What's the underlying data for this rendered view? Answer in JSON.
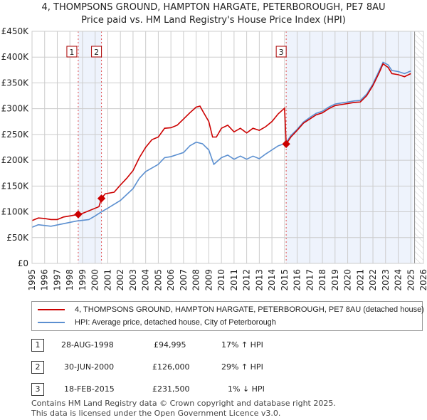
{
  "title": "4, THOMPSONS GROUND, HAMPTON HARGATE, PETERBOROUGH, PE7 8AU",
  "subtitle": "Price paid vs. HM Land Registry's House Price Index (HPI)",
  "colors": {
    "property": "#cc0000",
    "hpi": "#5b8fd0",
    "shade": "#eef3fc"
  },
  "legend": [
    {
      "label": "4, THOMPSONS GROUND, HAMPTON HARGATE, PETERBOROUGH, PE7 8AU (detached house)"
    },
    {
      "label": "HPI: Average price, detached house, City of Peterborough"
    }
  ],
  "sales": [
    {
      "num": "1",
      "date": "28-AUG-1998",
      "price": "£94,995",
      "hpi": "17% ↑ HPI"
    },
    {
      "num": "2",
      "date": "30-JUN-2000",
      "price": "£126,000",
      "hpi": "29% ↑ HPI"
    },
    {
      "num": "3",
      "date": "18-FEB-2015",
      "price": "£231,500",
      "hpi": "1% ↓ HPI"
    }
  ],
  "footer": [
    "Contains HM Land Registry data © Crown copyright and database right 2025.",
    "This data is licensed under the Open Government Licence v3.0."
  ],
  "chart_data": {
    "type": "line",
    "xlim": [
      1995,
      2026
    ],
    "ylim": [
      0,
      450000
    ],
    "yticks": [
      0,
      50000,
      100000,
      150000,
      200000,
      250000,
      300000,
      350000,
      400000,
      450000
    ],
    "ytick_labels": [
      "£0",
      "£50K",
      "£100K",
      "£150K",
      "£200K",
      "£250K",
      "£300K",
      "£350K",
      "£400K",
      "£450K"
    ],
    "xticks": [
      1995,
      1996,
      1997,
      1998,
      1999,
      2000,
      2001,
      2002,
      2003,
      2004,
      2005,
      2006,
      2007,
      2008,
      2009,
      2010,
      2011,
      2012,
      2013,
      2014,
      2015,
      2016,
      2017,
      2018,
      2019,
      2020,
      2021,
      2022,
      2023,
      2024,
      2025,
      2026
    ],
    "grid": true,
    "sale_points": [
      {
        "x": 1998.66,
        "y": 94995
      },
      {
        "x": 2000.5,
        "y": 126000
      },
      {
        "x": 2015.13,
        "y": 231500
      }
    ],
    "shaded": [
      [
        1998.66,
        2000.5
      ],
      [
        2015.13,
        2025.2
      ]
    ],
    "hatched_from": 2025.3,
    "series": [
      {
        "name": "property",
        "x": [
          1995,
          1995.5,
          1996,
          1996.5,
          1997,
          1997.5,
          1998,
          1998.66,
          1999,
          1999.5,
          2000.3,
          2000.5,
          2000.8,
          2001.5,
          2002,
          2002.5,
          2003,
          2003.5,
          2004,
          2004.5,
          2005,
          2005.5,
          2006,
          2006.5,
          2007,
          2007.5,
          2008,
          2008.3,
          2008.6,
          2009,
          2009.3,
          2009.6,
          2010,
          2010.5,
          2011,
          2011.5,
          2012,
          2012.5,
          2013,
          2013.5,
          2014,
          2014.5,
          2015,
          2015.13,
          2015.5,
          2016,
          2016.5,
          2017,
          2017.5,
          2018,
          2018.5,
          2019,
          2019.5,
          2020,
          2020.5,
          2021,
          2021.5,
          2022,
          2022.5,
          2022.8,
          2023.2,
          2023.5,
          2024,
          2024.5,
          2025
        ],
        "values": [
          83000,
          88000,
          87000,
          85000,
          85000,
          90000,
          92000,
          94995,
          97000,
          102000,
          110000,
          126000,
          135000,
          138000,
          152000,
          165000,
          180000,
          205000,
          225000,
          240000,
          245000,
          262000,
          263000,
          268000,
          280000,
          292000,
          303000,
          305000,
          292000,
          275000,
          245000,
          245000,
          262000,
          268000,
          255000,
          262000,
          253000,
          262000,
          258000,
          265000,
          275000,
          290000,
          301000,
          231500,
          245000,
          258000,
          272000,
          280000,
          288000,
          292000,
          300000,
          306000,
          308000,
          310000,
          312000,
          313000,
          325000,
          345000,
          370000,
          387000,
          380000,
          368000,
          366000,
          362000,
          368000
        ]
      },
      {
        "name": "hpi",
        "x": [
          1995,
          1995.5,
          1996.5,
          1997.5,
          1998.5,
          1999.5,
          2000,
          2000.5,
          2001,
          2002,
          2003,
          2003.5,
          2004,
          2005,
          2005.5,
          2006,
          2007,
          2007.5,
          2008,
          2008.5,
          2009,
          2009.4,
          2010,
          2010.5,
          2011,
          2011.5,
          2012,
          2012.5,
          2013,
          2013.5,
          2014,
          2014.5,
          2015.1,
          2015.5,
          2016,
          2016.5,
          2017,
          2017.5,
          2018,
          2018.5,
          2019,
          2019.5,
          2020,
          2020.5,
          2021,
          2021.5,
          2022,
          2022.5,
          2022.8,
          2023.2,
          2023.5,
          2024,
          2024.5,
          2025
        ],
        "values": [
          70000,
          75000,
          72000,
          77000,
          82000,
          85000,
          92000,
          100000,
          107000,
          122000,
          145000,
          165000,
          178000,
          192000,
          205000,
          207000,
          215000,
          228000,
          235000,
          232000,
          220000,
          192000,
          205000,
          210000,
          202000,
          208000,
          202000,
          208000,
          203000,
          212000,
          220000,
          228000,
          233000,
          248000,
          260000,
          274000,
          283000,
          291000,
          295000,
          303000,
          309000,
          311000,
          313000,
          315000,
          316000,
          328000,
          348000,
          374000,
          390000,
          385000,
          374000,
          372000,
          368000,
          373000
        ]
      }
    ]
  }
}
